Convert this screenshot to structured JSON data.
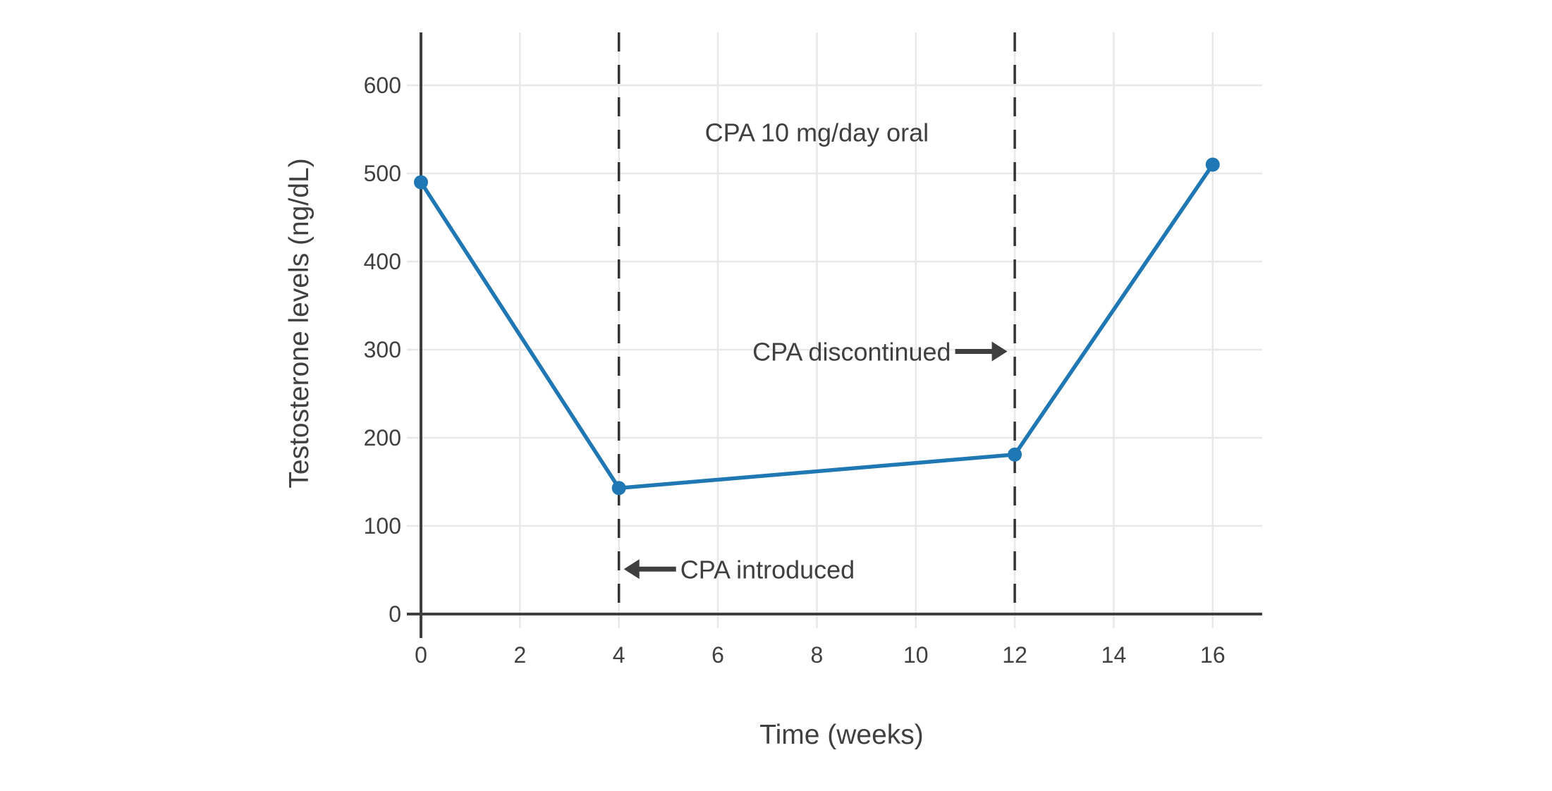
{
  "figure": {
    "background_color": "#ffffff"
  },
  "chart_data": {
    "type": "line",
    "title": "",
    "xlabel": "Time (weeks)",
    "ylabel": "Testosterone levels (ng/dL)",
    "x": [
      0,
      4,
      12,
      16
    ],
    "series": [
      {
        "name": "Testosterone",
        "values": [
          490,
          143,
          181,
          510
        ]
      }
    ],
    "x_ticks": [
      0,
      2,
      4,
      6,
      8,
      10,
      12,
      14,
      16
    ],
    "y_ticks": [
      0,
      100,
      200,
      300,
      400,
      500,
      600
    ],
    "xlim": [
      0,
      17
    ],
    "ylim": [
      0,
      660
    ],
    "grid": true,
    "legend": "none",
    "vlines": [
      {
        "x": 4,
        "style": "dashed"
      },
      {
        "x": 12,
        "style": "dashed"
      }
    ],
    "annotations": [
      {
        "id": "dose-label",
        "text": "CPA 10 mg/day oral",
        "x": 8,
        "y": 547,
        "arrow": "none"
      },
      {
        "id": "cpa-discontinued",
        "text": "CPA discontinued",
        "x": 11.85,
        "y": 298,
        "arrow": "right"
      },
      {
        "id": "cpa-introduced",
        "text": "CPA introduced",
        "x": 4.1,
        "y": 51,
        "arrow": "left"
      }
    ],
    "colors": {
      "line": "#1f77b4",
      "marker": "#1f77b4",
      "axis": "#3f3f3f",
      "text": "#404040",
      "grid": "#e8e8e8",
      "dashed_line": "#333333",
      "arrow": "#3f3f3f",
      "background": "#ffffff"
    }
  }
}
